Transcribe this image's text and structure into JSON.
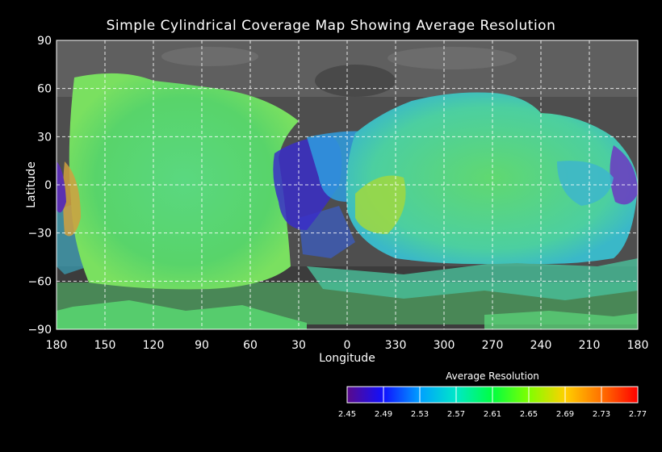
{
  "title": "Simple Cylindrical Coverage Map Showing Average Resolution",
  "axes": {
    "xlabel": "Longitude",
    "ylabel": "Latitude",
    "x_ticks": [
      "180",
      "150",
      "120",
      "90",
      "60",
      "30",
      "0",
      "330",
      "300",
      "270",
      "240",
      "210",
      "180"
    ],
    "y_ticks": [
      "90",
      "60",
      "30",
      "0",
      "−30",
      "−60",
      "−90"
    ]
  },
  "colorbar": {
    "title": "Average Resolution",
    "ticks": [
      "2.45",
      "2.49",
      "2.53",
      "2.57",
      "2.61",
      "2.65",
      "2.69",
      "2.73",
      "2.77"
    ],
    "colors": [
      "#5a0a8a",
      "#1010ff",
      "#00a0ff",
      "#00e8c8",
      "#00ff40",
      "#80ff00",
      "#ffd000",
      "#ff7000",
      "#ff0000"
    ]
  },
  "colors": {
    "background": "#000000",
    "grid": "#ffffff",
    "basemap": "#5a5a5a"
  }
}
